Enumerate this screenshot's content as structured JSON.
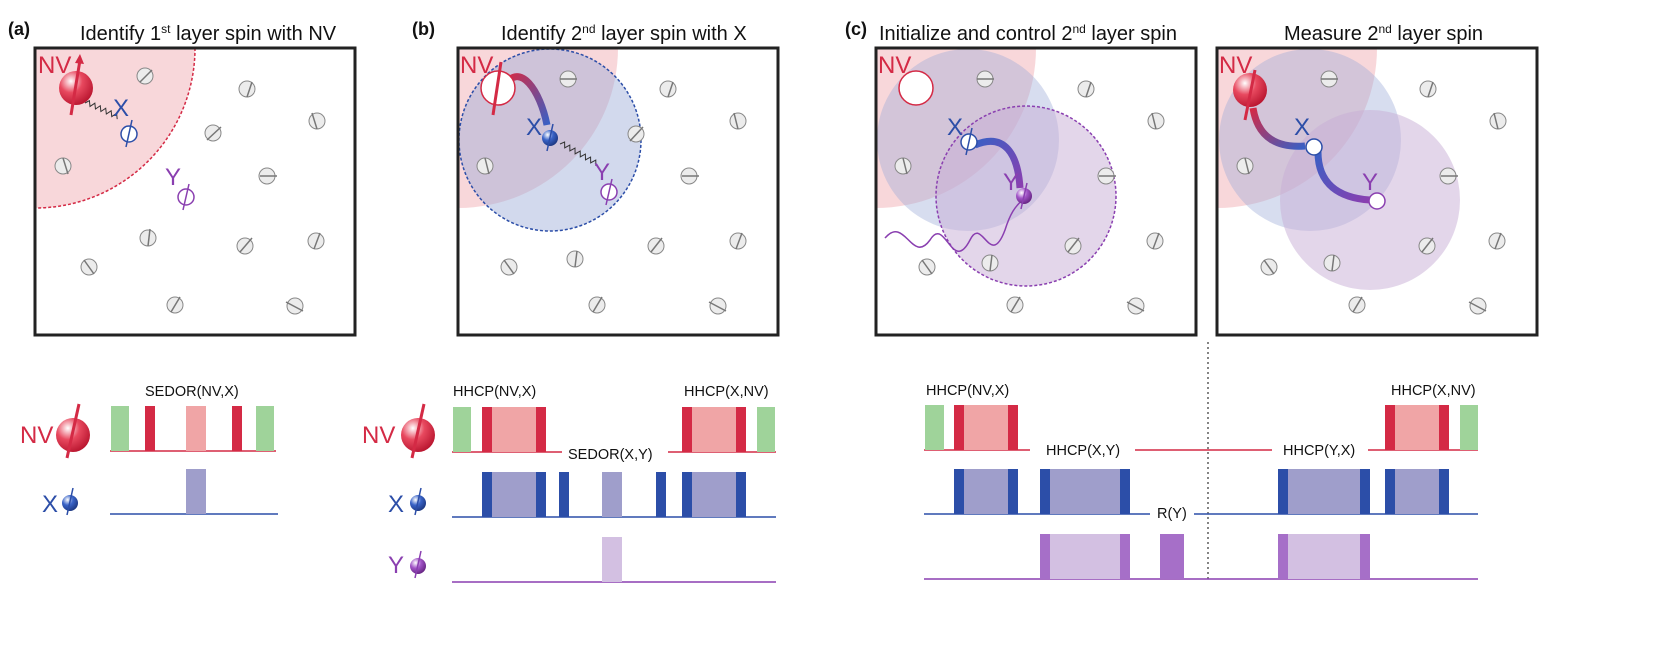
{
  "panels": {
    "a": {
      "letter": "(a)",
      "title_pre": "Identify 1",
      "title_sup": "st",
      "title_post": " layer spin with NV",
      "spins": {
        "nv": "NV",
        "x": "X",
        "y": "Y"
      },
      "sequence": {
        "label": "SEDOR(NV,X)",
        "rows": {
          "nv": "NV",
          "x": "X"
        }
      }
    },
    "b": {
      "letter": "(b)",
      "title_pre": "Identify 2",
      "title_sup": "nd",
      "title_post": " layer spin with X",
      "spins": {
        "nv": "NV",
        "x": "X",
        "y": "Y"
      },
      "sequence": {
        "labels": [
          "HHCP(NV,X)",
          "SEDOR(X,Y)",
          "HHCP(X,NV)"
        ],
        "rows": {
          "nv": "NV",
          "x": "X",
          "y": "Y"
        }
      }
    },
    "c": {
      "letter": "(c)",
      "title_left_pre": "Initialize and control 2",
      "title_left_sup": "nd",
      "title_left_post": " layer spin",
      "title_right_pre": "Measure 2",
      "title_right_sup": "nd",
      "title_right_post": " layer spin",
      "spins": {
        "nv": "NV",
        "x": "X",
        "y": "Y"
      },
      "sequence": {
        "labels": [
          "HHCP(NV,X)",
          "HHCP(X,Y)",
          "R(Y)",
          "HHCP(Y,X)",
          "HHCP(X,NV)"
        ]
      }
    }
  },
  "colors": {
    "nv": "#d42a45",
    "x": "#2c4ea8",
    "y": "#8a3fb0",
    "green_pulse": "#9fd39a",
    "nv_pulse_fill": "#f0a5a6",
    "x_pulse_fill": "#9f9ecb",
    "y_pulse_fill": "#d3c0e2"
  }
}
